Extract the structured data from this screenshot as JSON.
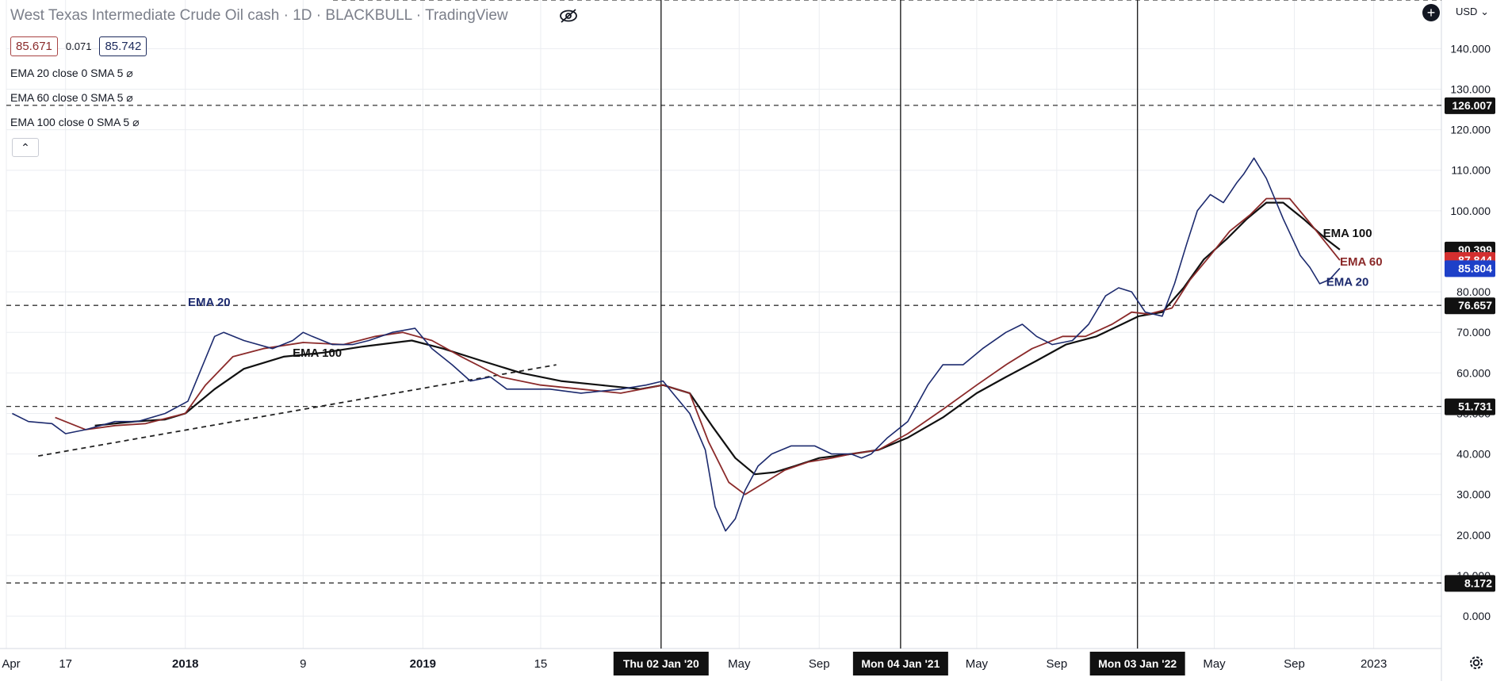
{
  "header": {
    "title": "West Texas Intermediate Crude Oil cash · 1D · BLACKBULL · TradingView",
    "open_value": "85.671",
    "change_value": "0.071",
    "close_value": "85.742",
    "currency": "USD",
    "currency_caret": "⌄",
    "collapse_glyph": "⌃",
    "plus_glyph": "+",
    "indicators": [
      "EMA 20 close 0 SMA 5  ⌀",
      "EMA 60 close 0 SMA 5  ⌀",
      "EMA 100 close 0 SMA 5  ⌀"
    ]
  },
  "icons": {
    "eye": "eye-off-icon",
    "settings": "gear-icon",
    "add": "plus-icon"
  },
  "colors": {
    "ema20": "#1c2a6e",
    "ema60": "#8b2a2a",
    "ema100": "#111111",
    "grid": "#ebedf1",
    "dashed": "#333333"
  },
  "chart_data": {
    "type": "line",
    "title": "West Texas Intermediate Crude Oil cash · 1D · BLACKBULL · TradingView",
    "ylabel": "USD",
    "ylim": [
      -8,
      152
    ],
    "xlim": [
      "2017-04-01",
      "2023-04-15"
    ],
    "grid": true,
    "y_ticks": [
      "0.000",
      "10.000",
      "20.000",
      "30.000",
      "40.000",
      "50.000",
      "60.000",
      "70.000",
      "80.000",
      "90.000",
      "100.000",
      "110.000",
      "120.000",
      "130.000",
      "140.000"
    ],
    "y_tick_values": [
      0,
      10,
      20,
      30,
      40,
      50,
      60,
      70,
      80,
      90,
      100,
      110,
      120,
      130,
      140
    ],
    "x_ticks": [
      {
        "label": "Apr",
        "date": "2017-04-01",
        "style": "plain"
      },
      {
        "label": "17",
        "date": "2017-07-01",
        "style": "plain"
      },
      {
        "label": "2018",
        "date": "2018-01-01",
        "style": "bold"
      },
      {
        "label": "9",
        "date": "2018-07-01",
        "style": "plain"
      },
      {
        "label": "2019",
        "date": "2019-01-01",
        "style": "bold"
      },
      {
        "label": "15",
        "date": "2019-07-01",
        "style": "plain"
      },
      {
        "label": "Thu 02 Jan '20",
        "date": "2020-01-02",
        "style": "badge"
      },
      {
        "label": "May",
        "date": "2020-05-01",
        "style": "plain"
      },
      {
        "label": "Sep",
        "date": "2020-09-01",
        "style": "plain"
      },
      {
        "label": "Mon 04 Jan '21",
        "date": "2021-01-04",
        "style": "badge"
      },
      {
        "label": "May",
        "date": "2021-05-01",
        "style": "plain"
      },
      {
        "label": "Sep",
        "date": "2021-09-01",
        "style": "plain"
      },
      {
        "label": "Mon 03 Jan '22",
        "date": "2022-01-03",
        "style": "badge"
      },
      {
        "label": "May",
        "date": "2022-05-01",
        "style": "plain"
      },
      {
        "label": "Sep",
        "date": "2022-09-01",
        "style": "plain"
      },
      {
        "label": "2023",
        "date": "2023-01-01",
        "style": "plain"
      }
    ],
    "vertical_lines": [
      "2020-01-02",
      "2021-01-04",
      "2022-01-03"
    ],
    "horizontal_levels": [
      {
        "value": 126.007,
        "label": "126.007"
      },
      {
        "value": 76.657,
        "label": "76.657"
      },
      {
        "value": 51.731,
        "label": "51.731"
      },
      {
        "value": 8.172,
        "label": "8.172"
      }
    ],
    "top_dashed_level": 152,
    "last_values": [
      {
        "series": "EMA 100",
        "value": 90.399,
        "label": "90.399"
      },
      {
        "series": "EMA 60",
        "value": 87.844,
        "label": "87.844"
      },
      {
        "series": "EMA 20",
        "value": 85.804,
        "label": "85.804"
      }
    ],
    "trendline": {
      "x": [
        "2017-05-20",
        "2019-07-25"
      ],
      "y": [
        39.5,
        62
      ]
    },
    "annotations": [
      {
        "text": "EMA 20",
        "series": "EMA 20",
        "x": "2018-01-05",
        "y": 76.5
      },
      {
        "text": "EMA 100",
        "series": "EMA 100",
        "x": "2018-06-15",
        "y": 64
      },
      {
        "text": "EMA 100",
        "series": "EMA 100",
        "x": "2022-10-15",
        "y": 93.5
      },
      {
        "text": "EMA 60",
        "series": "EMA 60",
        "x": "2022-11-10",
        "y": 86.5
      },
      {
        "text": "EMA 20",
        "series": "EMA 20",
        "x": "2022-10-20",
        "y": 81.5
      }
    ],
    "series": [
      {
        "name": "EMA 20",
        "x": [
          "2017-04-10",
          "2017-05-05",
          "2017-06-10",
          "2017-07-01",
          "2017-08-01",
          "2017-09-15",
          "2017-10-20",
          "2017-12-01",
          "2018-01-05",
          "2018-02-15",
          "2018-03-01",
          "2018-04-01",
          "2018-05-15",
          "2018-06-15",
          "2018-07-01",
          "2018-07-15",
          "2018-08-15",
          "2018-09-15",
          "2018-10-10",
          "2018-11-15",
          "2018-12-20",
          "2019-01-15",
          "2019-02-15",
          "2019-03-15",
          "2019-04-15",
          "2019-05-10",
          "2019-06-10",
          "2019-07-15",
          "2019-09-01",
          "2019-11-01",
          "2019-12-10",
          "2020-01-05",
          "2020-01-20",
          "2020-02-15",
          "2020-03-10",
          "2020-03-25",
          "2020-04-10",
          "2020-04-25",
          "2020-05-10",
          "2020-05-30",
          "2020-06-20",
          "2020-07-20",
          "2020-08-25",
          "2020-09-20",
          "2020-10-20",
          "2020-11-05",
          "2020-11-20",
          "2020-12-15",
          "2021-01-15",
          "2021-02-15",
          "2021-03-10",
          "2021-04-10",
          "2021-05-10",
          "2021-06-15",
          "2021-07-10",
          "2021-08-01",
          "2021-08-25",
          "2021-09-25",
          "2021-10-20",
          "2021-11-15",
          "2021-12-05",
          "2021-12-25",
          "2022-01-15",
          "2022-02-10",
          "2022-03-01",
          "2022-03-20",
          "2022-04-05",
          "2022-04-25",
          "2022-05-15",
          "2022-06-05",
          "2022-06-15",
          "2022-07-01",
          "2022-07-20",
          "2022-08-15",
          "2022-09-10",
          "2022-09-25",
          "2022-10-10",
          "2022-10-25",
          "2022-11-10"
        ],
        "values": [
          50,
          48,
          47.5,
          45,
          46,
          48,
          48,
          50,
          53,
          69,
          70,
          68,
          66,
          68,
          70,
          69,
          67,
          67,
          68,
          70,
          71,
          66,
          62,
          58,
          59,
          56,
          56,
          56,
          55,
          56,
          57,
          58,
          55,
          50,
          41,
          27,
          21,
          24,
          31,
          37,
          40,
          42,
          42,
          40,
          40,
          39,
          40,
          44,
          48,
          57,
          62,
          62,
          66,
          70,
          72,
          69,
          67,
          68,
          72,
          79,
          81,
          80,
          75,
          74,
          82,
          92,
          100,
          104,
          102,
          107,
          109,
          113,
          108,
          98,
          89,
          86,
          82,
          83,
          85.8
        ]
      },
      {
        "name": "EMA 60",
        "x": [
          "2017-06-15",
          "2017-08-01",
          "2017-09-15",
          "2017-11-01",
          "2018-01-01",
          "2018-02-01",
          "2018-03-15",
          "2018-05-01",
          "2018-07-01",
          "2018-09-01",
          "2018-10-20",
          "2018-12-01",
          "2019-01-15",
          "2019-03-01",
          "2019-05-01",
          "2019-07-01",
          "2019-09-01",
          "2019-11-01",
          "2020-01-05",
          "2020-02-15",
          "2020-03-15",
          "2020-04-15",
          "2020-05-10",
          "2020-06-10",
          "2020-07-10",
          "2020-08-15",
          "2020-09-20",
          "2020-10-20",
          "2020-12-01",
          "2021-01-15",
          "2021-03-10",
          "2021-05-01",
          "2021-06-15",
          "2021-07-25",
          "2021-09-10",
          "2021-10-15",
          "2021-11-25",
          "2021-12-25",
          "2022-01-20",
          "2022-02-25",
          "2022-03-25",
          "2022-04-25",
          "2022-05-25",
          "2022-06-25",
          "2022-07-20",
          "2022-08-25",
          "2022-09-25",
          "2022-11-10"
        ],
        "values": [
          49,
          46,
          47,
          47.5,
          50,
          57,
          64,
          66,
          67.5,
          67,
          69,
          70,
          68,
          64,
          59,
          57,
          56,
          55,
          57,
          55,
          43,
          33,
          30,
          33,
          36,
          38,
          39,
          40,
          41,
          45,
          51,
          57,
          62,
          66,
          69,
          69,
          72,
          75,
          74.5,
          76,
          83,
          89,
          95,
          99,
          103,
          103,
          97,
          87.8
        ]
      },
      {
        "name": "EMA 100",
        "x": [
          "2017-08-15",
          "2017-10-15",
          "2017-12-01",
          "2018-01-01",
          "2018-02-15",
          "2018-04-01",
          "2018-06-01",
          "2018-08-01",
          "2018-10-01",
          "2018-12-15",
          "2019-02-01",
          "2019-04-01",
          "2019-06-01",
          "2019-08-01",
          "2019-10-01",
          "2019-12-01",
          "2020-01-05",
          "2020-02-15",
          "2020-03-20",
          "2020-04-25",
          "2020-05-25",
          "2020-06-25",
          "2020-07-25",
          "2020-09-01",
          "2020-10-20",
          "2020-12-01",
          "2021-01-15",
          "2021-03-10",
          "2021-05-01",
          "2021-06-15",
          "2021-08-01",
          "2021-09-15",
          "2021-11-01",
          "2021-12-10",
          "2022-01-05",
          "2022-02-10",
          "2022-03-15",
          "2022-04-15",
          "2022-05-20",
          "2022-06-20",
          "2022-07-20",
          "2022-08-15",
          "2022-09-15",
          "2022-10-20",
          "2022-11-10"
        ],
        "values": [
          47,
          48,
          48.5,
          50,
          56,
          61,
          64,
          65,
          66.5,
          68,
          66,
          63,
          60,
          58,
          57,
          56,
          57,
          55,
          47,
          39,
          35,
          35.5,
          37,
          39,
          40,
          41,
          44,
          49,
          55,
          59,
          63,
          67,
          69,
          72,
          74,
          75,
          81,
          88,
          93,
          98,
          102,
          102,
          98,
          93,
          90.4
        ]
      }
    ]
  }
}
